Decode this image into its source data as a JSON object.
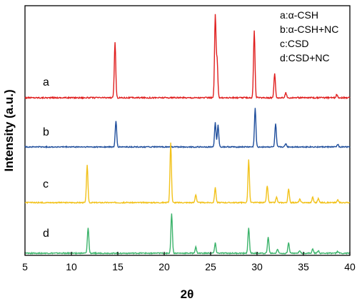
{
  "chart_data": {
    "type": "line",
    "title": "",
    "xlabel": "2θ",
    "ylabel": "Intensity (a.u.)",
    "xlim": [
      5,
      40
    ],
    "x_ticks": [
      5,
      10,
      15,
      20,
      25,
      30,
      35,
      40
    ],
    "x_tick_labels": [
      "5",
      "10",
      "15",
      "20",
      "25",
      "30",
      "35",
      "40"
    ],
    "y_ticks_visible": false,
    "grid": false,
    "legend_position": "top-right",
    "legend": [
      {
        "key": "a",
        "label": "a:α-CSH"
      },
      {
        "key": "b",
        "label": "b:α-CSH+NC"
      },
      {
        "key": "c",
        "label": "c:CSD"
      },
      {
        "key": "d",
        "label": "d:CSD+NC"
      }
    ],
    "series": [
      {
        "curve_label": "a",
        "color": "#e02020",
        "baseline_rel": 0.0,
        "peaks": [
          {
            "x": 14.7,
            "h": 68
          },
          {
            "x": 25.5,
            "h": 100
          },
          {
            "x": 25.7,
            "h": 45
          },
          {
            "x": 29.7,
            "h": 82
          },
          {
            "x": 31.9,
            "h": 30
          },
          {
            "x": 33.1,
            "h": 6
          },
          {
            "x": 38.6,
            "h": 4
          }
        ]
      },
      {
        "curve_label": "b",
        "color": "#1f4e9c",
        "baseline_rel": 0.0,
        "peaks": [
          {
            "x": 14.8,
            "h": 38
          },
          {
            "x": 25.5,
            "h": 36
          },
          {
            "x": 25.8,
            "h": 32
          },
          {
            "x": 29.8,
            "h": 57
          },
          {
            "x": 32.0,
            "h": 34
          },
          {
            "x": 33.1,
            "h": 5
          },
          {
            "x": 38.7,
            "h": 4
          }
        ]
      },
      {
        "curve_label": "c",
        "color": "#f2c21b",
        "baseline_rel": 0.0,
        "peaks": [
          {
            "x": 11.7,
            "h": 55
          },
          {
            "x": 20.7,
            "h": 88
          },
          {
            "x": 23.4,
            "h": 12
          },
          {
            "x": 25.5,
            "h": 22
          },
          {
            "x": 29.1,
            "h": 63
          },
          {
            "x": 31.1,
            "h": 25
          },
          {
            "x": 32.1,
            "h": 8
          },
          {
            "x": 33.4,
            "h": 20
          },
          {
            "x": 34.6,
            "h": 5
          },
          {
            "x": 36.0,
            "h": 8
          },
          {
            "x": 36.6,
            "h": 6
          },
          {
            "x": 38.7,
            "h": 4
          }
        ]
      },
      {
        "curve_label": "d",
        "color": "#3cb36b",
        "baseline_rel": 0.0,
        "peaks": [
          {
            "x": 11.8,
            "h": 38
          },
          {
            "x": 20.8,
            "h": 59
          },
          {
            "x": 23.4,
            "h": 9
          },
          {
            "x": 25.5,
            "h": 15
          },
          {
            "x": 29.1,
            "h": 38
          },
          {
            "x": 31.2,
            "h": 24
          },
          {
            "x": 32.2,
            "h": 6
          },
          {
            "x": 33.4,
            "h": 16
          },
          {
            "x": 34.6,
            "h": 4
          },
          {
            "x": 36.0,
            "h": 6
          },
          {
            "x": 36.6,
            "h": 4
          },
          {
            "x": 38.7,
            "h": 3
          }
        ]
      }
    ]
  }
}
